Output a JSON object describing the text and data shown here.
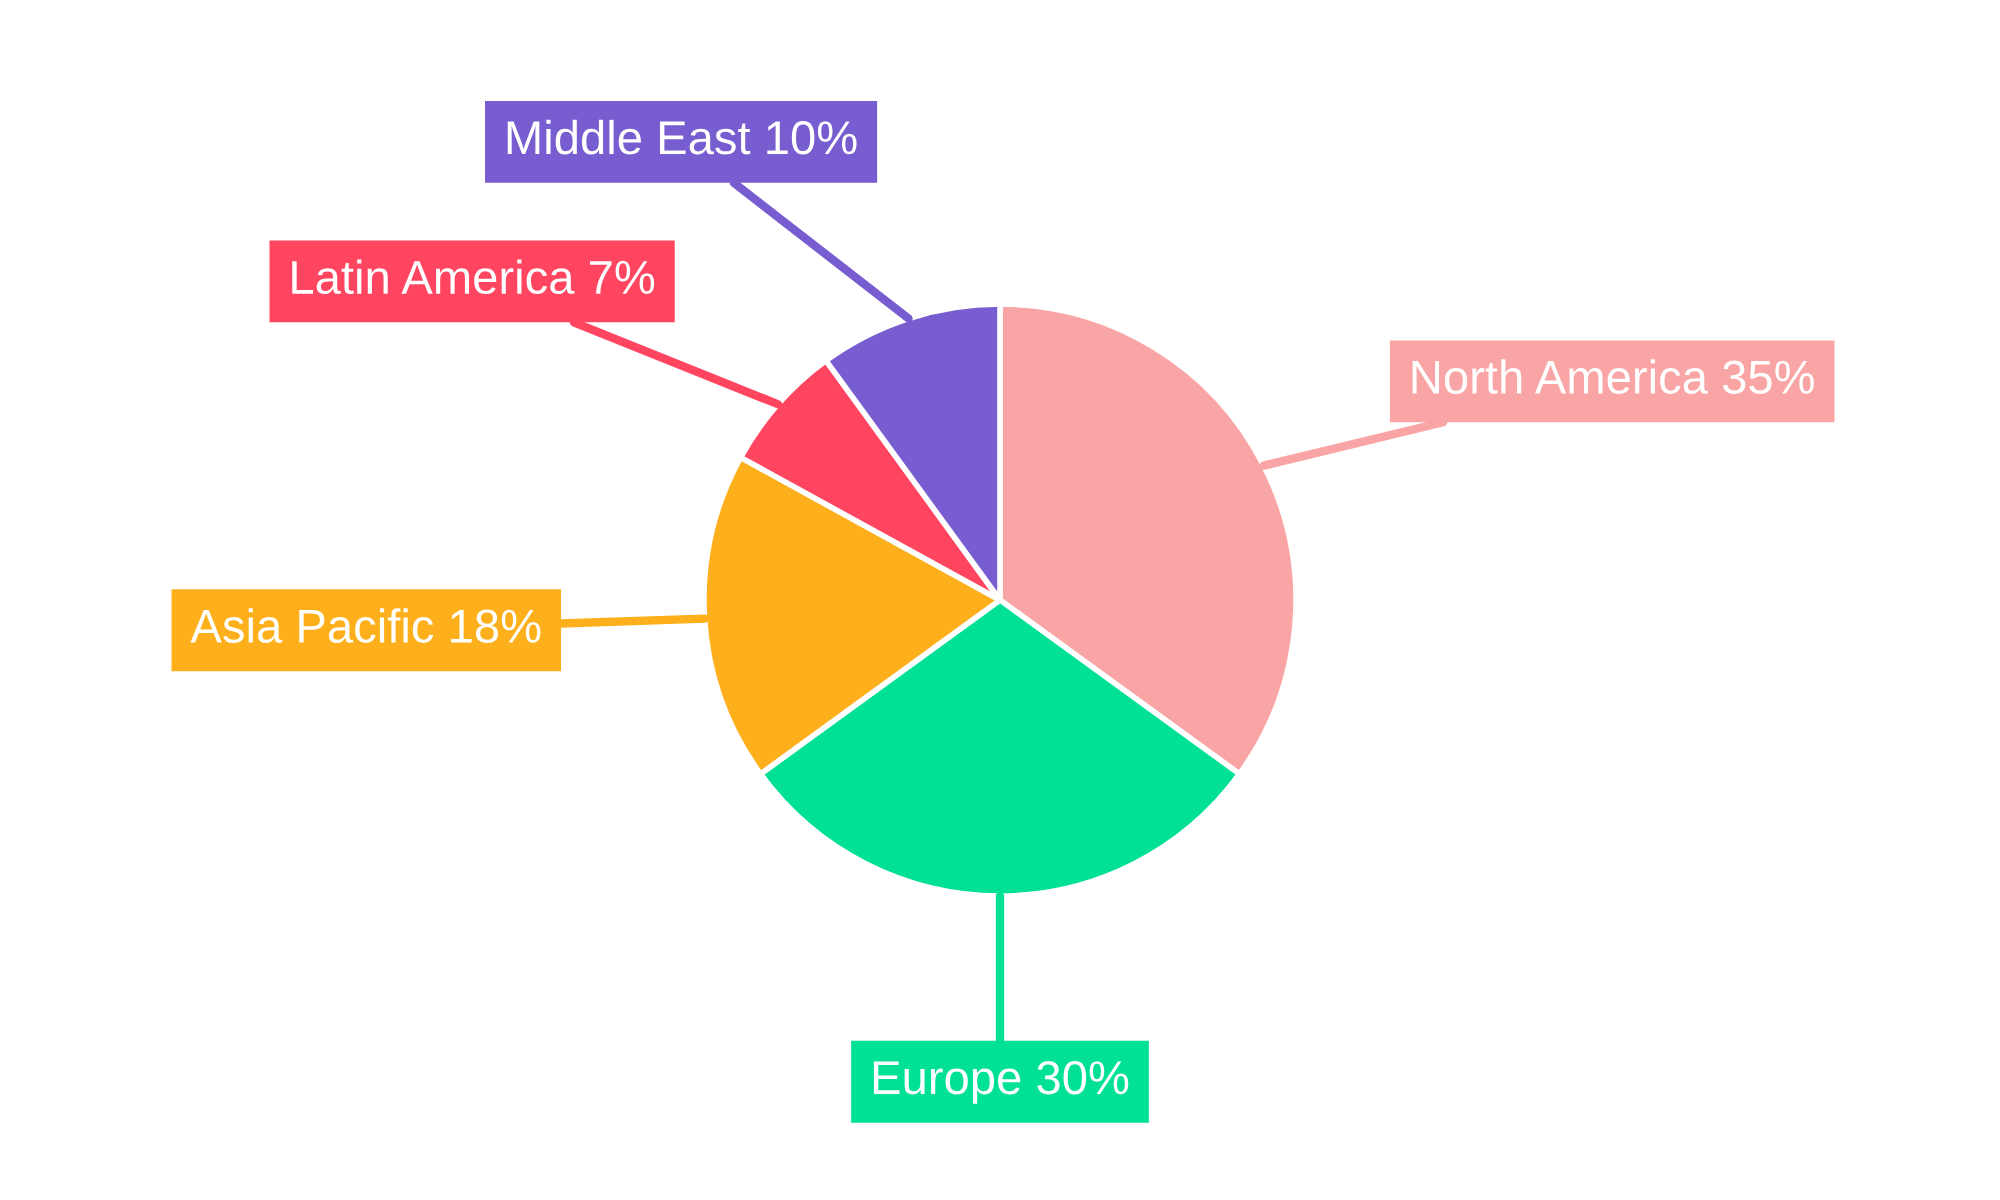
{
  "chart_data": {
    "type": "pie",
    "categories": [
      "North America",
      "Europe",
      "Asia Pacific",
      "Latin America",
      "Middle East"
    ],
    "values": [
      35,
      30,
      18,
      7,
      10
    ],
    "colors": [
      "#f9a5a5",
      "#00e096",
      "#fdb01b",
      "#ff4560",
      "#775dd0"
    ],
    "value_labels": [
      "35%",
      "30%",
      "18%",
      "7%",
      "10%"
    ]
  }
}
